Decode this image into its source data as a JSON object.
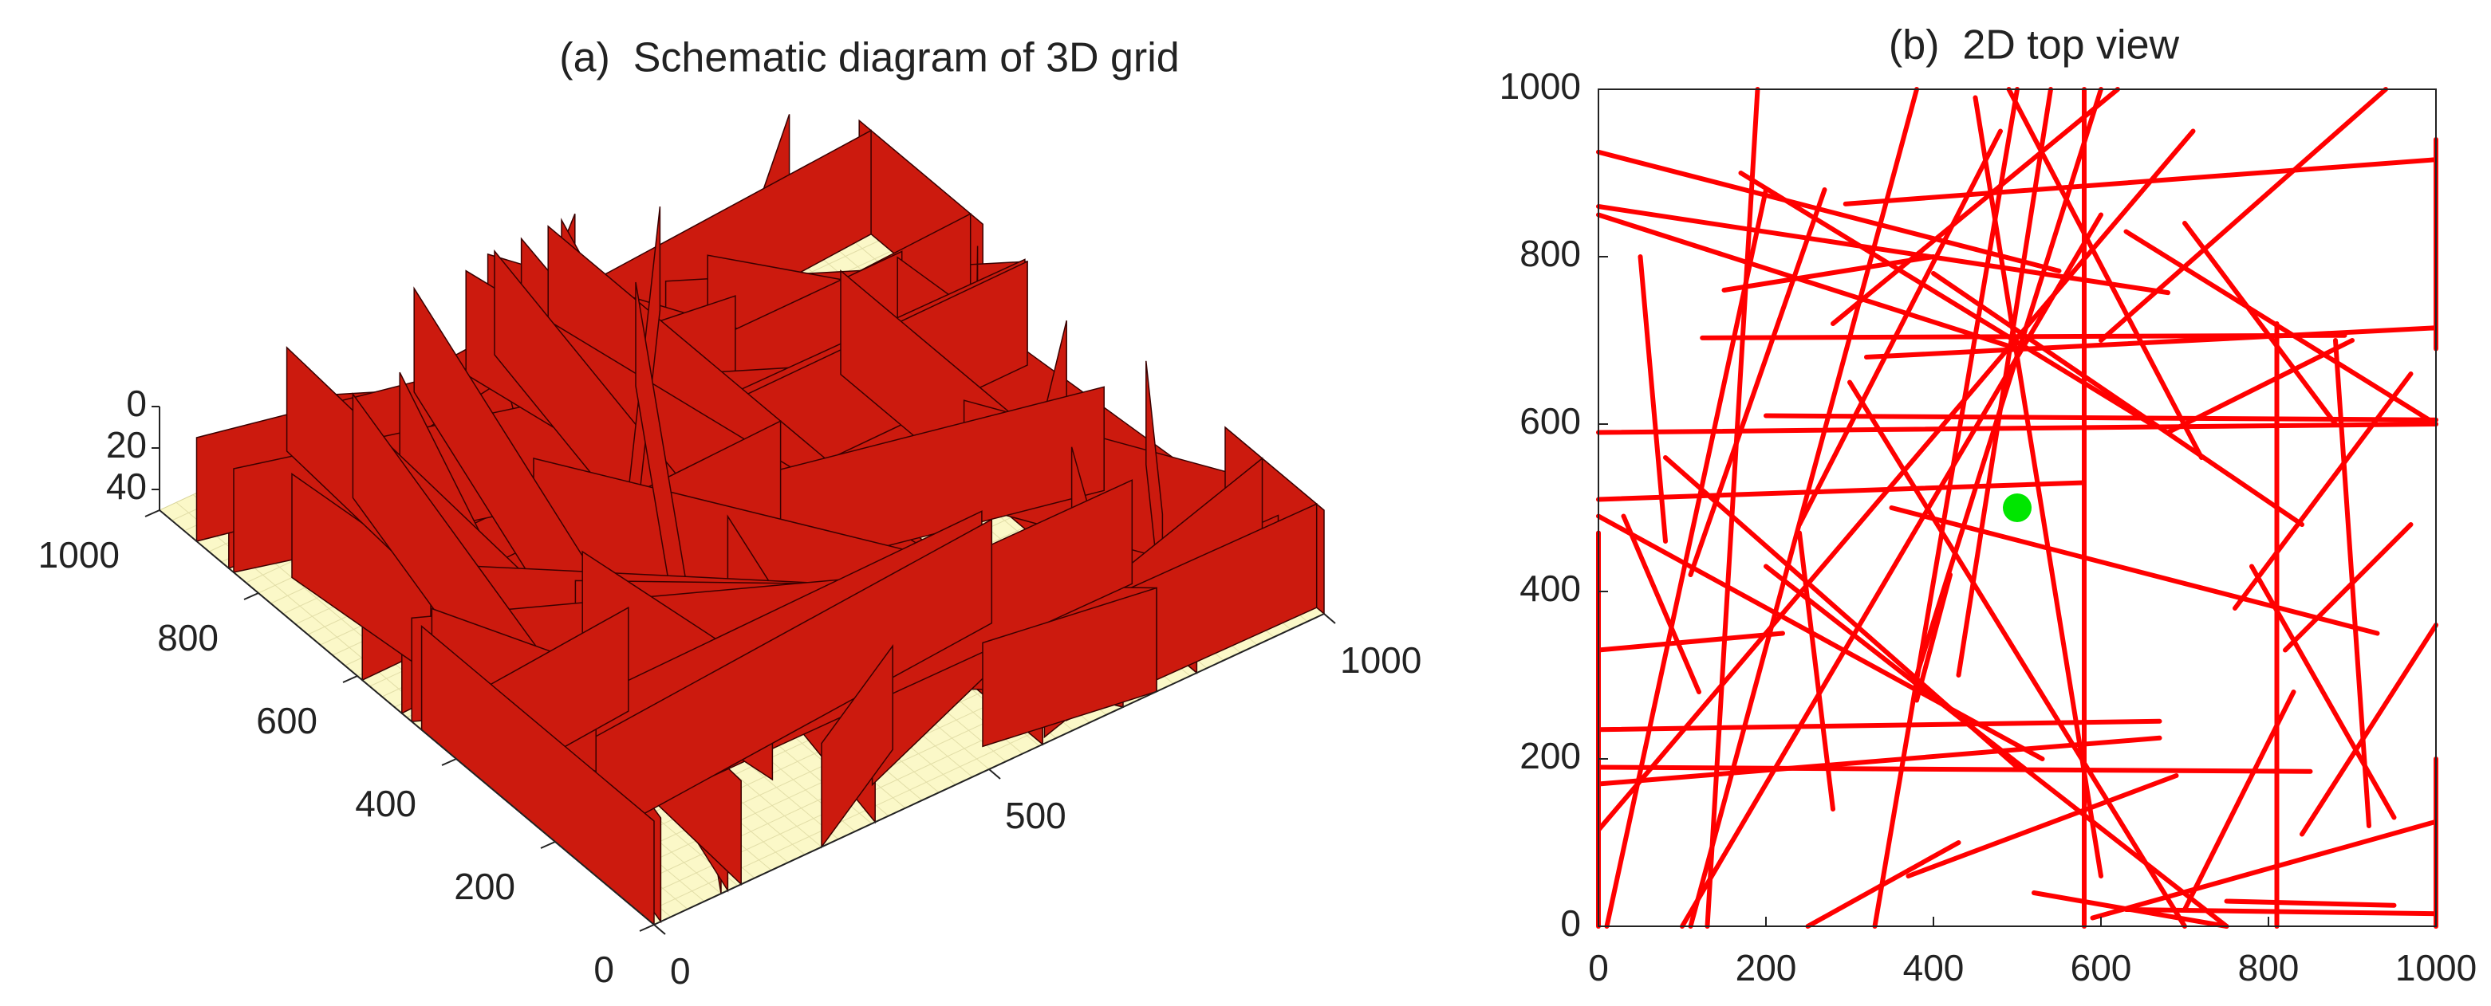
{
  "chart_data": [
    {
      "type": "surface3d",
      "title": "(a)  Schematic diagram of 3D grid",
      "xlim": [
        0,
        1000
      ],
      "ylim": [
        0,
        1000
      ],
      "zlim": [
        0,
        50
      ],
      "xticks": [
        0,
        500,
        1000
      ],
      "yticks": [
        0,
        200,
        400,
        600,
        800,
        1000
      ],
      "zticks": [
        0,
        20,
        40
      ],
      "surface_color": "#fbf8c8",
      "color": "#cc1a0e"
    },
    {
      "type": "segments",
      "title": "(b)  2D top view",
      "xlim": [
        0,
        1000
      ],
      "ylim": [
        0,
        1000
      ],
      "xticks": [
        0,
        200,
        400,
        600,
        800,
        1000
      ],
      "yticks": [
        0,
        200,
        400,
        600,
        800,
        1000
      ],
      "color": "#ff0000",
      "segments": [
        {
          "x": [
            0,
            550
          ],
          "y": [
            925,
            783
          ]
        },
        {
          "x": [
            0,
            680
          ],
          "y": [
            860,
            757
          ]
        },
        {
          "x": [
            0,
            500
          ],
          "y": [
            850,
            690
          ]
        },
        {
          "x": [
            295,
            1000
          ],
          "y": [
            863,
            916
          ]
        },
        {
          "x": [
            124,
            891
          ],
          "y": [
            703,
            706
          ]
        },
        {
          "x": [
            320,
            1000
          ],
          "y": [
            680,
            715
          ]
        },
        {
          "x": [
            0,
            1000
          ],
          "y": [
            590,
            600
          ]
        },
        {
          "x": [
            200,
            1000
          ],
          "y": [
            610,
            605
          ]
        },
        {
          "x": [
            0,
            670
          ],
          "y": [
            235,
            245
          ]
        },
        {
          "x": [
            0,
            850
          ],
          "y": [
            190,
            185
          ]
        },
        {
          "x": [
            0,
            670
          ],
          "y": [
            170,
            225
          ]
        },
        {
          "x": [
            0,
            580
          ],
          "y": [
            510,
            530
          ]
        },
        {
          "x": [
            0,
            220
          ],
          "y": [
            330,
            350
          ]
        },
        {
          "x": [
            580,
            580
          ],
          "y": [
            1000,
            0
          ]
        },
        {
          "x": [
            810,
            810
          ],
          "y": [
            720,
            0
          ]
        },
        {
          "x": [
            1000,
            1000
          ],
          "y": [
            940,
            690
          ]
        },
        {
          "x": [
            1000,
            1000
          ],
          "y": [
            200,
            0
          ]
        },
        {
          "x": [
            0,
            0
          ],
          "y": [
            470,
            0
          ]
        },
        {
          "x": [
            50,
            80
          ],
          "y": [
            800,
            460
          ]
        },
        {
          "x": [
            0,
            710
          ],
          "y": [
            115,
            950
          ]
        },
        {
          "x": [
            100,
            600
          ],
          "y": [
            0,
            850
          ]
        },
        {
          "x": [
            380,
            110
          ],
          "y": [
            1000,
            0
          ]
        },
        {
          "x": [
            500,
            330
          ],
          "y": [
            1000,
            0
          ]
        },
        {
          "x": [
            600,
            380
          ],
          "y": [
            1000,
            300
          ]
        },
        {
          "x": [
            270,
            110
          ],
          "y": [
            880,
            420
          ]
        },
        {
          "x": [
            400,
            840
          ],
          "y": [
            780,
            480
          ]
        },
        {
          "x": [
            630,
            1000
          ],
          "y": [
            830,
            600
          ]
        },
        {
          "x": [
            0,
            530
          ],
          "y": [
            490,
            200
          ]
        },
        {
          "x": [
            200,
            750
          ],
          "y": [
            430,
            0
          ]
        },
        {
          "x": [
            300,
            700
          ],
          "y": [
            650,
            0
          ]
        },
        {
          "x": [
            80,
            500
          ],
          "y": [
            560,
            190
          ]
        },
        {
          "x": [
            370,
            690
          ],
          "y": [
            60,
            180
          ]
        },
        {
          "x": [
            590,
            1000
          ],
          "y": [
            10,
            125
          ]
        },
        {
          "x": [
            630,
            1000
          ],
          "y": [
            20,
            15
          ]
        },
        {
          "x": [
            750,
            950
          ],
          "y": [
            30,
            25
          ]
        },
        {
          "x": [
            760,
            970
          ],
          "y": [
            380,
            660
          ]
        },
        {
          "x": [
            820,
            970
          ],
          "y": [
            330,
            480
          ]
        },
        {
          "x": [
            950,
            780
          ],
          "y": [
            130,
            430
          ]
        },
        {
          "x": [
            1000,
            840
          ],
          "y": [
            360,
            110
          ]
        },
        {
          "x": [
            190,
            130
          ],
          "y": [
            1000,
            0
          ]
        },
        {
          "x": [
            200,
            10
          ],
          "y": [
            880,
            0
          ]
        },
        {
          "x": [
            450,
            600
          ],
          "y": [
            990,
            60
          ]
        },
        {
          "x": [
            540,
            430
          ],
          "y": [
            1000,
            300
          ]
        },
        {
          "x": [
            620,
            280
          ],
          "y": [
            1000,
            720
          ]
        },
        {
          "x": [
            490,
            720
          ],
          "y": [
            1000,
            560
          ]
        },
        {
          "x": [
            600,
            940
          ],
          "y": [
            700,
            1000
          ]
        },
        {
          "x": [
            170,
            660
          ],
          "y": [
            900,
            600
          ]
        },
        {
          "x": [
            350,
            930
          ],
          "y": [
            500,
            350
          ]
        },
        {
          "x": [
            480,
            240
          ],
          "y": [
            950,
            480
          ]
        },
        {
          "x": [
            700,
            880
          ],
          "y": [
            840,
            600
          ]
        },
        {
          "x": [
            430,
            250
          ],
          "y": [
            100,
            0
          ]
        },
        {
          "x": [
            150,
            400
          ],
          "y": [
            760,
            800
          ]
        },
        {
          "x": [
            680,
            900
          ],
          "y": [
            590,
            700
          ]
        },
        {
          "x": [
            880,
            920
          ],
          "y": [
            700,
            120
          ]
        },
        {
          "x": [
            520,
            750
          ],
          "y": [
            40,
            0
          ]
        },
        {
          "x": [
            280,
            240
          ],
          "y": [
            140,
            470
          ]
        },
        {
          "x": [
            830,
            700
          ],
          "y": [
            280,
            20
          ]
        },
        {
          "x": [
            30,
            120
          ],
          "y": [
            490,
            280
          ]
        },
        {
          "x": [
            420,
            380
          ],
          "y": [
            420,
            270
          ]
        }
      ],
      "point": {
        "x": 500,
        "y": 500,
        "color": "#00e600"
      }
    }
  ]
}
